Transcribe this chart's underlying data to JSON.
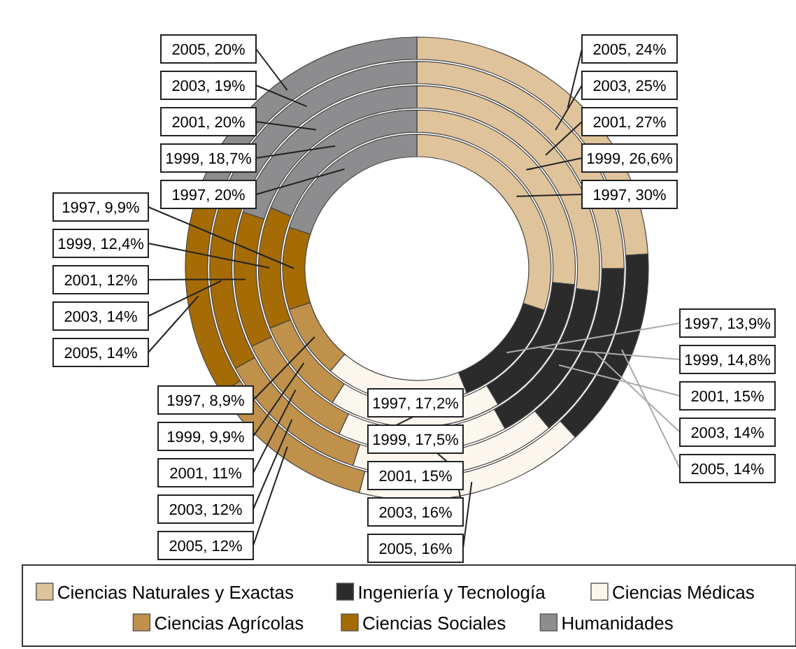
{
  "chart_data": {
    "type": "donut",
    "categories": [
      "Ciencias Naturales y Exactas",
      "Ingeniería y Tecnología",
      "Ciencias Médicas",
      "Ciencias Agrícolas",
      "Ciencias Sociales",
      "Humanidades"
    ],
    "colors": [
      "#dfc39b",
      "#2b2b2b",
      "#fbf6ee",
      "#bf914a",
      "#a56b05",
      "#8d8d8f"
    ],
    "series": [
      {
        "values": [
          30,
          13.9,
          17.2,
          8.9,
          9.9,
          20
        ],
        "value_labels": [
          "1997, 30%",
          "1997, 13,9%",
          "1997, 17,2%",
          "1997, 8,9%",
          "1997, 9,9%",
          "1997, 20%"
        ]
      },
      {
        "values": [
          26.6,
          14.8,
          17.5,
          9.9,
          12.4,
          18.7
        ],
        "value_labels": [
          "1999, 26,6%",
          "1999, 14,8%",
          "1999, 17,5%",
          "1999, 9,9%",
          "1999, 12,4%",
          "1999, 18,7%"
        ]
      },
      {
        "values": [
          27,
          15,
          15,
          11,
          12,
          20
        ],
        "value_labels": [
          "2001, 27%",
          "2001, 15%",
          "2001, 15%",
          "2001, 11%",
          "2001, 12%",
          "2001, 20%"
        ]
      },
      {
        "values": [
          25,
          14,
          16,
          12,
          14,
          19
        ],
        "value_labels": [
          "2003, 25%",
          "2003, 14%",
          "2003, 16%",
          "2003, 12%",
          "2003, 14%",
          "2003, 19%"
        ]
      },
      {
        "values": [
          24,
          14,
          16,
          12,
          14,
          20
        ],
        "value_labels": [
          "2005, 24%",
          "2005, 14%",
          "2005, 16%",
          "2005, 12%",
          "2005, 14%",
          "2005, 20%"
        ]
      }
    ],
    "legend": "bottom"
  }
}
